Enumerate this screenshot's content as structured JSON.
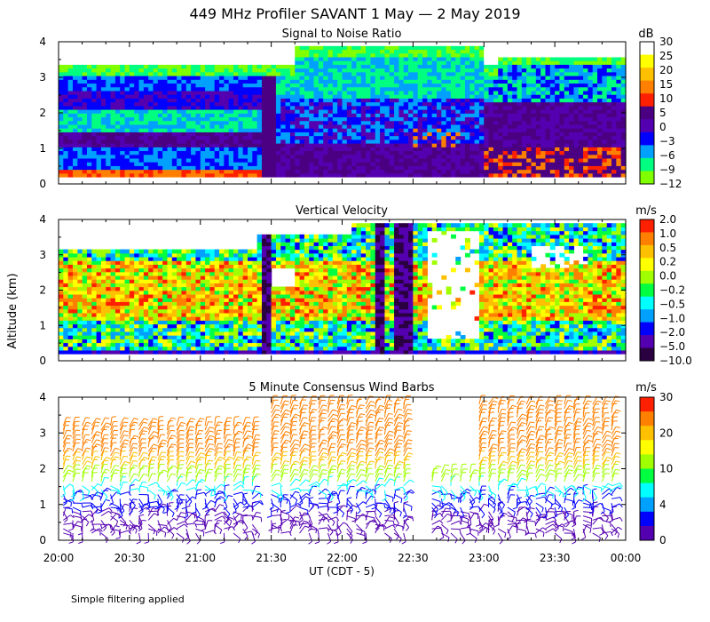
{
  "chart_data": {
    "title": "449 MHz Profiler SAVANT  1 May —  2 May 2019",
    "ylabel": "Altitude (km)",
    "xlabel": "UT  (CDT - 5)",
    "footnote": "Simple filtering applied",
    "x_ticks": [
      "20:00",
      "20:30",
      "21:00",
      "21:30",
      "22:00",
      "22:30",
      "23:00",
      "23:30",
      "00:00"
    ],
    "x_range_min": [
      0,
      240
    ],
    "y_ticks": [
      0,
      1,
      2,
      3,
      4
    ],
    "ylim_km": [
      0,
      4
    ],
    "panels": [
      {
        "type": "heatmap",
        "title": "Signal to Noise Ratio",
        "unit": "dB",
        "colorbar_labels": [
          "30",
          "25",
          "20",
          "15",
          "10",
          "5",
          "0",
          "−3",
          "−6",
          "−9",
          "−12"
        ],
        "colorbar_colors": [
          "#ffffff",
          "#ffff00",
          "#ffc000",
          "#ff8000",
          "#ff2000",
          "#4b0082",
          "#5500b0",
          "#0000ff",
          "#00a0ff",
          "#00ff80",
          "#80ff00"
        ]
      },
      {
        "type": "heatmap",
        "title": "Vertical Velocity",
        "unit": "m/s",
        "colorbar_labels": [
          "2.0",
          "1.0",
          "0.5",
          "0.2",
          "0.0",
          "−0.2",
          "−0.5",
          "−1.0",
          "−2.0",
          "−5.0",
          "−10.0"
        ],
        "colorbar_colors": [
          "#ff2000",
          "#ff8000",
          "#ffc000",
          "#ffff00",
          "#a0ff00",
          "#00ff40",
          "#00ffff",
          "#00a0ff",
          "#0000ff",
          "#5500b0",
          "#2a0040"
        ]
      },
      {
        "type": "wind_barbs",
        "title": "5 Minute Consensus Wind Barbs",
        "unit": "m/s",
        "colorbar_labels": [
          "30",
          "20",
          "10",
          "4",
          "0"
        ],
        "colorbar_colors": [
          "#ff2000",
          "#ff8000",
          "#ffc000",
          "#ffff00",
          "#a0ff00",
          "#00ff40",
          "#00ffff",
          "#00a0ff",
          "#0000ff",
          "#5500b0"
        ]
      }
    ]
  }
}
